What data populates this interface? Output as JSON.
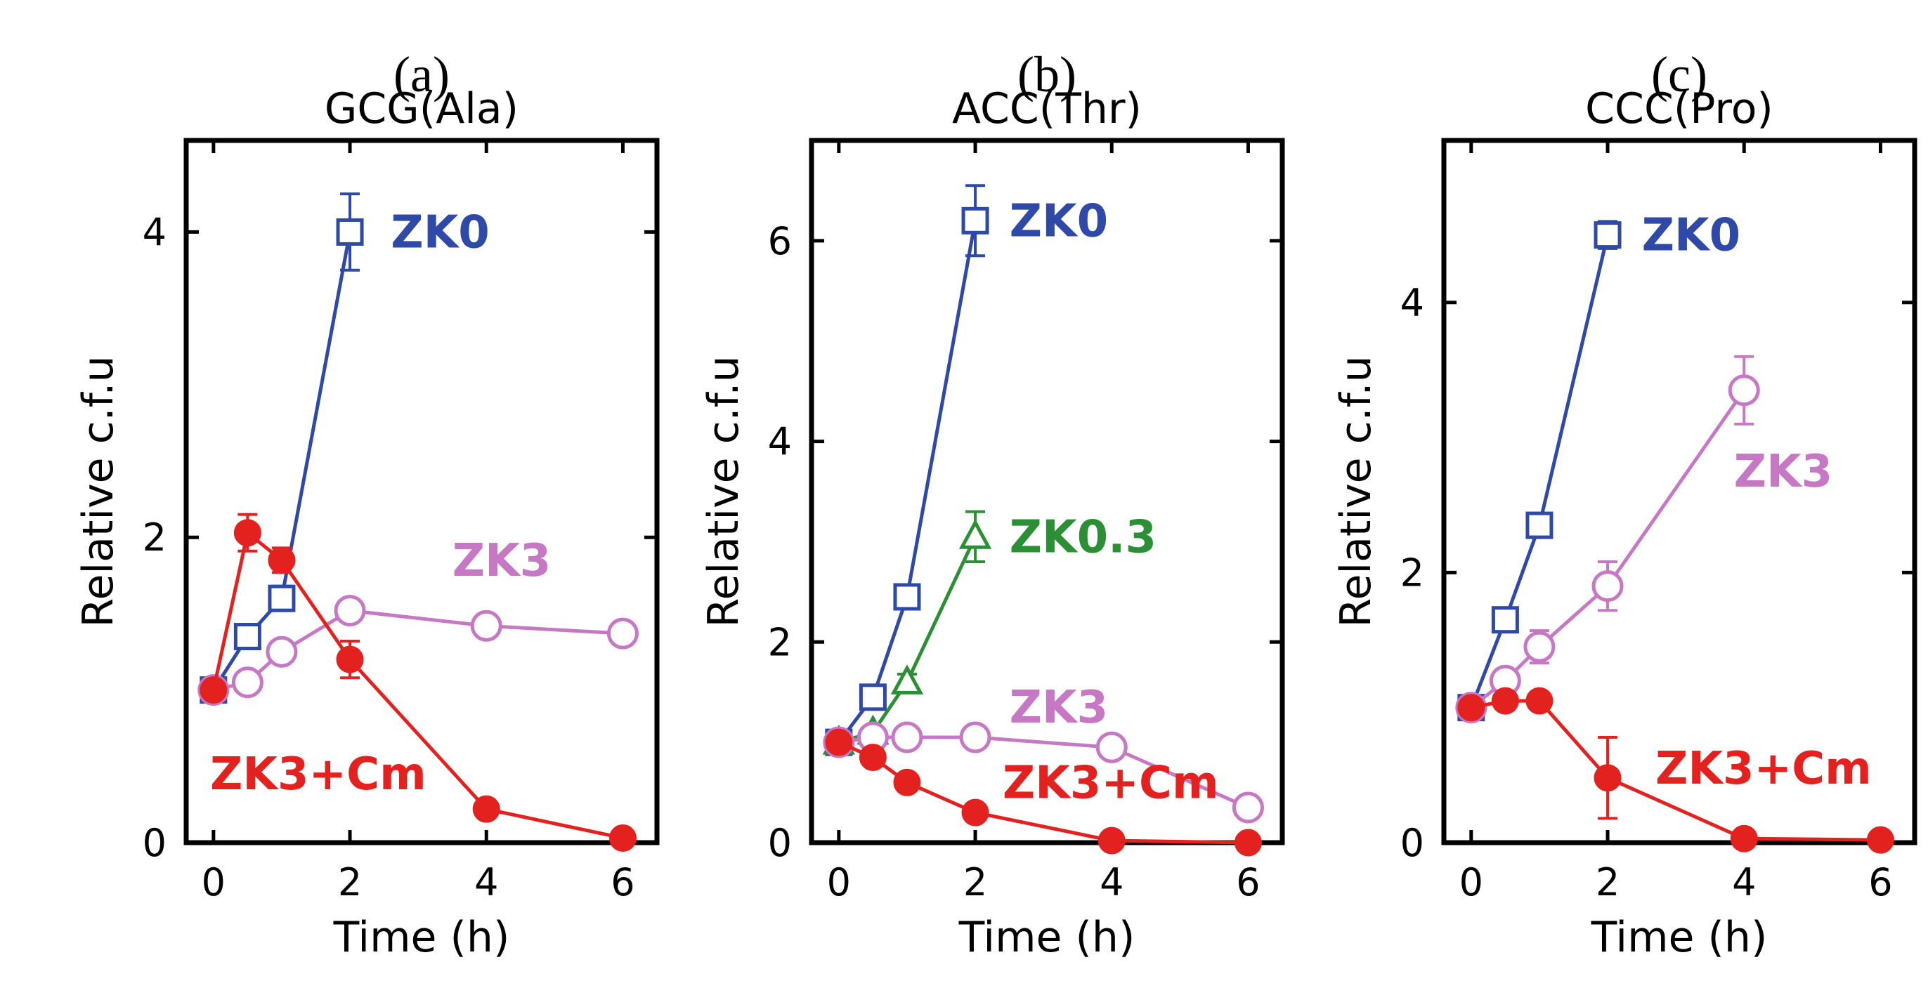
{
  "colors": {
    "ZK0": "#2e49a8",
    "ZK0.3": "#2a8f35",
    "ZK3": "#c678c4",
    "ZK3+Cm": "#e3221f"
  },
  "chart_data": [
    {
      "type": "line",
      "panel_label": "(a)",
      "title": "GCG(Ala)",
      "xlabel": "Time (h)",
      "ylabel": "Relative c.f.u",
      "xlim": [
        -0.4,
        6.5
      ],
      "ylim": [
        0,
        4.6
      ],
      "xticks": [
        0,
        2,
        4,
        6
      ],
      "yticks": [
        0,
        2,
        4
      ],
      "series": [
        {
          "name": "ZK0",
          "label": "ZK0",
          "marker": "square",
          "x": [
            0,
            0.5,
            1,
            2
          ],
          "y": [
            1.0,
            1.35,
            1.6,
            4.0
          ],
          "err": [
            0.05,
            0.05,
            0.08,
            0.25
          ],
          "label_pos": {
            "x": 2.6,
            "y": 4.0
          }
        },
        {
          "name": "ZK3",
          "label": "ZK3",
          "marker": "circle",
          "x": [
            0,
            0.5,
            1,
            2,
            4,
            6
          ],
          "y": [
            1.0,
            1.05,
            1.25,
            1.52,
            1.42,
            1.37
          ],
          "err": [
            0.05,
            0.05,
            0.05,
            0.05,
            0.05,
            0.05
          ],
          "label_pos": {
            "x": 3.5,
            "y": 1.85
          }
        },
        {
          "name": "ZK3+Cm",
          "label": "ZK3+Cm",
          "marker": "filled-circle",
          "x": [
            0,
            0.5,
            1,
            2,
            4,
            6
          ],
          "y": [
            1.0,
            2.03,
            1.85,
            1.2,
            0.22,
            0.03
          ],
          "err": [
            0.05,
            0.12,
            0.08,
            0.12,
            0.03,
            0.03
          ],
          "label_pos": {
            "x": -0.05,
            "y": 0.45
          }
        }
      ]
    },
    {
      "type": "line",
      "panel_label": "(b)",
      "title": "ACC(Thr)",
      "xlabel": "Time (h)",
      "ylabel": "Relative c.f.u",
      "xlim": [
        -0.4,
        6.5
      ],
      "ylim": [
        0,
        7.0
      ],
      "xticks": [
        0,
        2,
        4,
        6
      ],
      "yticks": [
        0,
        2,
        4,
        6
      ],
      "series": [
        {
          "name": "ZK0",
          "label": "ZK0",
          "marker": "square",
          "x": [
            0,
            0.5,
            1,
            2
          ],
          "y": [
            1.0,
            1.45,
            2.45,
            6.2
          ],
          "err": [
            0.05,
            0.1,
            0.08,
            0.35
          ],
          "label_pos": {
            "x": 2.5,
            "y": 6.2
          }
        },
        {
          "name": "ZK0.3",
          "label": "ZK0.3",
          "marker": "triangle",
          "x": [
            0,
            0.5,
            1,
            2
          ],
          "y": [
            1.0,
            1.1,
            1.6,
            3.05
          ],
          "err": [
            0.05,
            0.05,
            0.08,
            0.25
          ],
          "label_pos": {
            "x": 2.5,
            "y": 3.05
          }
        },
        {
          "name": "ZK3",
          "label": "ZK3",
          "marker": "circle",
          "x": [
            0,
            0.5,
            1,
            2,
            4,
            6
          ],
          "y": [
            1.0,
            1.05,
            1.05,
            1.05,
            0.95,
            0.35
          ],
          "err": [
            0.05,
            0.05,
            0.05,
            0.05,
            0.05,
            0.05
          ],
          "label_pos": {
            "x": 2.5,
            "y": 1.35
          }
        },
        {
          "name": "ZK3+Cm",
          "label": "ZK3+Cm",
          "marker": "filled-circle",
          "x": [
            0,
            0.5,
            1,
            2,
            4,
            6
          ],
          "y": [
            1.0,
            0.85,
            0.6,
            0.3,
            0.02,
            0.0
          ],
          "err": [
            0.05,
            0.05,
            0.05,
            0.05,
            0.02,
            0.02
          ],
          "label_pos": {
            "x": 2.4,
            "y": 0.6
          }
        }
      ]
    },
    {
      "type": "line",
      "panel_label": "(c)",
      "title": "CCC(Pro)",
      "xlabel": "Time (h)",
      "ylabel": "Relative c.f.u",
      "xlim": [
        -0.4,
        6.5
      ],
      "ylim": [
        0,
        5.2
      ],
      "xticks": [
        0,
        2,
        4,
        6
      ],
      "yticks": [
        0,
        2,
        4
      ],
      "series": [
        {
          "name": "ZK0",
          "label": "ZK0",
          "marker": "square",
          "x": [
            0,
            0.5,
            1,
            2
          ],
          "y": [
            1.0,
            1.65,
            2.35,
            4.5
          ],
          "err": [
            0.05,
            0.08,
            0.08,
            0.1
          ],
          "label_pos": {
            "x": 2.5,
            "y": 4.5
          }
        },
        {
          "name": "ZK3",
          "label": "ZK3",
          "marker": "circle",
          "x": [
            0,
            0.5,
            1,
            2,
            4
          ],
          "y": [
            1.0,
            1.2,
            1.45,
            1.9,
            3.35
          ],
          "err": [
            0.05,
            0.08,
            0.12,
            0.18,
            0.25
          ],
          "label_pos": {
            "x": 3.85,
            "y": 2.75
          }
        },
        {
          "name": "ZK3+Cm",
          "label": "ZK3+Cm",
          "marker": "filled-circle",
          "x": [
            0,
            0.5,
            1,
            2,
            4,
            6
          ],
          "y": [
            1.0,
            1.05,
            1.05,
            0.48,
            0.03,
            0.02
          ],
          "err": [
            0.05,
            0.05,
            0.05,
            0.3,
            0.02,
            0.02
          ],
          "label_pos": {
            "x": 2.7,
            "y": 0.55
          }
        }
      ]
    }
  ]
}
